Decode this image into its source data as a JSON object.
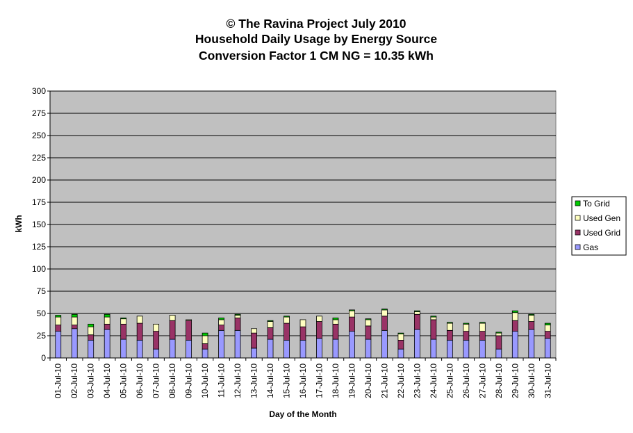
{
  "chart_data": {
    "type": "bar",
    "stacked": true,
    "title_lines": [
      "© The Ravina Project July 2010",
      "Household Daily Usage by Energy Source",
      "Conversion Factor 1 CM NG = 10.35 kWh"
    ],
    "xlabel": "Day of the Month",
    "ylabel": "kWh",
    "ylim": [
      0,
      300
    ],
    "yticks": [
      0,
      25,
      50,
      75,
      100,
      125,
      150,
      175,
      200,
      225,
      250,
      275,
      300
    ],
    "grid": true,
    "legend_position": "right",
    "categories": [
      "01-Jul-10",
      "02-Jul-10",
      "03-Jul-10",
      "04-Jul-10",
      "05-Jul-10",
      "06-Jul-10",
      "07-Jul-10",
      "08-Jul-10",
      "09-Jul-10",
      "10-Jul-10",
      "11-Jul-10",
      "12-Jul-10",
      "13-Jul-10",
      "14-Jul-10",
      "15-Jul-10",
      "16-Jul-10",
      "17-Jul-10",
      "18-Jul-10",
      "19-Jul-10",
      "20-Jul-10",
      "21-Jul-10",
      "22-Jul-10",
      "23-Jul-10",
      "24-Jul-10",
      "25-Jul-10",
      "26-Jul-10",
      "27-Jul-10",
      "28-Jul-10",
      "29-Jul-10",
      "30-Jul-10",
      "31-Jul-10"
    ],
    "series": [
      {
        "name": "Gas",
        "color": "#9999FF",
        "values": [
          30,
          33,
          20,
          32,
          21,
          20,
          10,
          21,
          20,
          10,
          31,
          31,
          11,
          21,
          20,
          20,
          22,
          21,
          30,
          21,
          31,
          10,
          32,
          21,
          20,
          20,
          20,
          10,
          30,
          32,
          22
        ]
      },
      {
        "name": "Used Grid",
        "color": "#993366",
        "values": [
          7,
          4,
          6,
          6,
          17,
          19,
          20,
          21,
          22,
          6,
          6,
          14,
          17,
          13,
          19,
          15,
          19,
          17,
          16,
          15,
          16,
          10,
          17,
          22,
          11,
          10,
          10,
          15,
          12,
          9,
          8
        ]
      },
      {
        "name": "Used Gen",
        "color": "#FFFFC0",
        "values": [
          9,
          9,
          9,
          8,
          6,
          8,
          8,
          6,
          1,
          9,
          6,
          3,
          5,
          7,
          7,
          8,
          6,
          5,
          7,
          7,
          7,
          7,
          3,
          3,
          8,
          8,
          9,
          3,
          9,
          7,
          7
        ]
      },
      {
        "name": "To Grid",
        "color": "#00CC00",
        "values": [
          2,
          3,
          3,
          3,
          1,
          0,
          0,
          0,
          0,
          3,
          2,
          1,
          0,
          1,
          1,
          0,
          0,
          2,
          1,
          1,
          1,
          1,
          1,
          1,
          1,
          1,
          1,
          1,
          2,
          1,
          2
        ]
      }
    ]
  }
}
